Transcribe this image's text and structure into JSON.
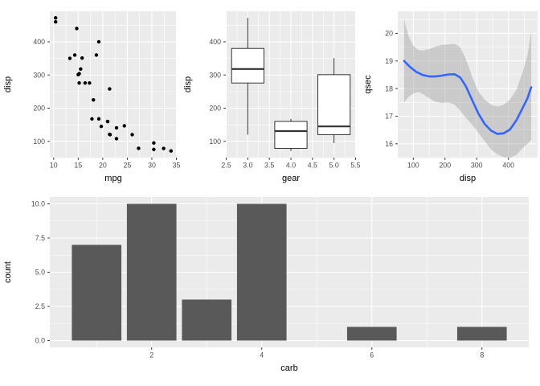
{
  "style": {
    "figure_bg": "#FFFFFF",
    "panel_bg": "#EBEBEB",
    "grid_color": "#FFFFFF",
    "tick_mark_color": "#333333",
    "tick_label_color": "#4D4D4D",
    "axis_title_color": "#000000"
  },
  "chart_data": [
    {
      "id": "scatter-disp-mpg",
      "type": "scatter",
      "xlabel": "mpg",
      "ylabel": "disp",
      "xlim": [
        9.22,
        35.08
      ],
      "ylim": [
        51,
        492
      ],
      "xtick_values": [
        10,
        15,
        20,
        25,
        30,
        35
      ],
      "xtick_labels": [
        "10",
        "15",
        "20",
        "25",
        "30",
        "35"
      ],
      "ytick_values": [
        100,
        200,
        300,
        400
      ],
      "ytick_labels": [
        "100",
        "200",
        "300",
        "400"
      ],
      "xminor": [
        12.5,
        17.5,
        22.5,
        27.5,
        32.5
      ],
      "yminor": [
        150,
        250,
        350,
        450
      ],
      "grid": true,
      "point_color": "#000000",
      "point_radius": 2.2,
      "points": [
        [
          21.0,
          160
        ],
        [
          21.0,
          160
        ],
        [
          22.8,
          108
        ],
        [
          21.4,
          258
        ],
        [
          18.7,
          360
        ],
        [
          18.1,
          225
        ],
        [
          14.3,
          360
        ],
        [
          24.4,
          146.7
        ],
        [
          22.8,
          140.8
        ],
        [
          19.2,
          167.6
        ],
        [
          17.8,
          167.6
        ],
        [
          16.4,
          275.8
        ],
        [
          17.3,
          275.8
        ],
        [
          15.2,
          275.8
        ],
        [
          10.4,
          472
        ],
        [
          10.4,
          460
        ],
        [
          14.7,
          440
        ],
        [
          32.4,
          78.7
        ],
        [
          30.4,
          75.7
        ],
        [
          33.9,
          71.1
        ],
        [
          21.5,
          120.1
        ],
        [
          15.5,
          318
        ],
        [
          15.2,
          304
        ],
        [
          13.3,
          350
        ],
        [
          19.2,
          400
        ],
        [
          27.3,
          79
        ],
        [
          26.0,
          120.3
        ],
        [
          30.4,
          95.1
        ],
        [
          15.8,
          351
        ],
        [
          19.7,
          145
        ],
        [
          15.0,
          301
        ],
        [
          21.4,
          121
        ]
      ]
    },
    {
      "id": "box-disp-gear",
      "type": "boxplot",
      "xlabel": "gear",
      "ylabel": "disp",
      "xlim": [
        2.49,
        5.51
      ],
      "ylim": [
        51,
        492
      ],
      "xtick_values": [
        2.5,
        3.0,
        3.5,
        4.0,
        4.5,
        5.0,
        5.5
      ],
      "xtick_labels": [
        "2.5",
        "3.0",
        "3.5",
        "4.0",
        "4.5",
        "5.0",
        "5.5"
      ],
      "ytick_values": [
        100,
        200,
        300,
        400
      ],
      "ytick_labels": [
        "100",
        "200",
        "300",
        "400"
      ],
      "xminor": [
        2.75,
        3.25,
        3.75,
        4.25,
        4.75,
        5.25
      ],
      "yminor": [
        150,
        250,
        350,
        450
      ],
      "grid": true,
      "box_fill": "#FFFFFF",
      "box_stroke": "#333333",
      "box_width": 0.75,
      "boxes": [
        {
          "x": 3,
          "min": 120.1,
          "q1": 275.8,
          "median": 318,
          "q3": 380,
          "max": 472
        },
        {
          "x": 4,
          "min": 71.1,
          "q1": 78.9,
          "median": 130.9,
          "q3": 160,
          "max": 167.6
        },
        {
          "x": 5,
          "min": 95.1,
          "q1": 120.3,
          "median": 145,
          "q3": 301,
          "max": 351
        }
      ]
    },
    {
      "id": "smooth-qsec-disp",
      "type": "smooth",
      "xlabel": "disp",
      "ylabel": "qsec",
      "xlim": [
        51,
        492
      ],
      "ylim": [
        15.5,
        20.8
      ],
      "xtick_values": [
        100,
        200,
        300,
        400
      ],
      "xtick_labels": [
        "100",
        "200",
        "300",
        "400"
      ],
      "ytick_values": [
        16,
        17,
        18,
        19,
        20
      ],
      "ytick_labels": [
        "16",
        "17",
        "18",
        "19",
        "20"
      ],
      "xminor": [
        150,
        250,
        350,
        450
      ],
      "yminor": [
        16.5,
        17.5,
        18.5,
        19.5,
        20.5
      ],
      "grid": true,
      "line_color": "#3366FF",
      "line_width": 2.6,
      "band_color": "#999999",
      "band_opacity": 0.4,
      "line": [
        [
          71,
          19.0
        ],
        [
          90,
          18.78
        ],
        [
          110,
          18.6
        ],
        [
          130,
          18.49
        ],
        [
          150,
          18.44
        ],
        [
          170,
          18.44
        ],
        [
          190,
          18.47
        ],
        [
          210,
          18.51
        ],
        [
          230,
          18.52
        ],
        [
          248,
          18.4
        ],
        [
          265,
          18.1
        ],
        [
          285,
          17.6
        ],
        [
          305,
          17.1
        ],
        [
          325,
          16.72
        ],
        [
          345,
          16.48
        ],
        [
          365,
          16.36
        ],
        [
          385,
          16.38
        ],
        [
          405,
          16.52
        ],
        [
          425,
          16.85
        ],
        [
          445,
          17.3
        ],
        [
          460,
          17.65
        ],
        [
          472,
          18.05
        ]
      ],
      "band_upper": [
        [
          71,
          20.5
        ],
        [
          85,
          19.9
        ],
        [
          100,
          19.55
        ],
        [
          115,
          19.4
        ],
        [
          130,
          19.38
        ],
        [
          150,
          19.43
        ],
        [
          170,
          19.52
        ],
        [
          190,
          19.58
        ],
        [
          210,
          19.6
        ],
        [
          230,
          19.62
        ],
        [
          248,
          19.5
        ],
        [
          265,
          19.1
        ],
        [
          285,
          18.45
        ],
        [
          305,
          17.9
        ],
        [
          325,
          17.6
        ],
        [
          345,
          17.42
        ],
        [
          365,
          17.35
        ],
        [
          385,
          17.42
        ],
        [
          405,
          17.6
        ],
        [
          425,
          17.95
        ],
        [
          445,
          18.6
        ],
        [
          460,
          19.2
        ],
        [
          472,
          20.1
        ]
      ],
      "band_lower": [
        [
          71,
          17.5
        ],
        [
          85,
          17.7
        ],
        [
          100,
          17.82
        ],
        [
          115,
          17.88
        ],
        [
          130,
          17.8
        ],
        [
          150,
          17.65
        ],
        [
          170,
          17.52
        ],
        [
          190,
          17.48
        ],
        [
          210,
          17.5
        ],
        [
          230,
          17.42
        ],
        [
          248,
          17.2
        ],
        [
          265,
          16.95
        ],
        [
          285,
          16.7
        ],
        [
          305,
          16.4
        ],
        [
          325,
          16.1
        ],
        [
          345,
          15.8
        ],
        [
          365,
          15.62
        ],
        [
          385,
          15.52
        ],
        [
          405,
          15.5
        ],
        [
          425,
          15.6
        ],
        [
          445,
          15.85
        ],
        [
          460,
          16.0
        ],
        [
          472,
          16.15
        ]
      ]
    },
    {
      "id": "bar-count-carb",
      "type": "bar",
      "xlabel": "carb",
      "ylabel": "count",
      "xlim": [
        0.15,
        8.85
      ],
      "ylim": [
        -0.5,
        10.5
      ],
      "xtick_values": [
        2,
        4,
        6,
        8
      ],
      "xtick_labels": [
        "2",
        "4",
        "6",
        "8"
      ],
      "ytick_values": [
        0,
        2.5,
        5,
        7.5,
        10
      ],
      "ytick_labels": [
        "0.0",
        "2.5",
        "5.0",
        "7.5",
        "10.0"
      ],
      "xminor": [
        1,
        3,
        5,
        7
      ],
      "yminor": [
        1.25,
        3.75,
        6.25,
        8.75
      ],
      "grid": true,
      "bar_color": "#595959",
      "bar_width": 0.9,
      "categories": [
        1,
        2,
        3,
        4,
        6,
        8
      ],
      "values": [
        7,
        10,
        3,
        10,
        1,
        1
      ]
    }
  ]
}
